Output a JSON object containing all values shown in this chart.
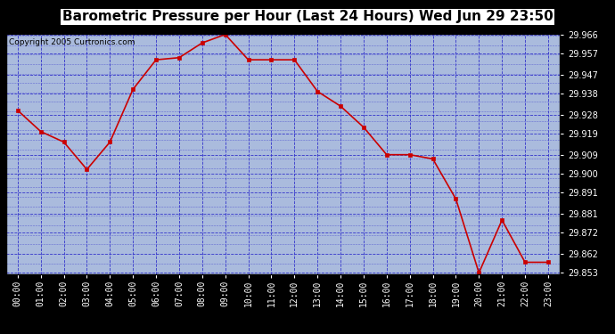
{
  "title": "Barometric Pressure per Hour (Last 24 Hours) Wed Jun 29 23:50",
  "copyright": "Copyright 2005 Curtronics.com",
  "hours": [
    "00:00",
    "01:00",
    "02:00",
    "03:00",
    "04:00",
    "05:00",
    "06:00",
    "07:00",
    "08:00",
    "09:00",
    "10:00",
    "11:00",
    "12:00",
    "13:00",
    "14:00",
    "15:00",
    "16:00",
    "17:00",
    "18:00",
    "19:00",
    "20:00",
    "21:00",
    "22:00",
    "23:00"
  ],
  "values": [
    29.93,
    29.92,
    29.915,
    29.902,
    29.915,
    29.94,
    29.954,
    29.955,
    29.962,
    29.966,
    29.954,
    29.954,
    29.954,
    29.939,
    29.932,
    29.922,
    29.909,
    29.909,
    29.907,
    29.888,
    29.853,
    29.878,
    29.858,
    29.858
  ],
  "ylim_min": 29.853,
  "ylim_max": 29.966,
  "yticks": [
    29.853,
    29.862,
    29.872,
    29.881,
    29.891,
    29.9,
    29.909,
    29.919,
    29.928,
    29.938,
    29.947,
    29.957,
    29.966
  ],
  "line_color": "#cc0000",
  "marker_color": "#cc0000",
  "bg_color": "#aabbdd",
  "plot_bg_color": "#aabbdd",
  "grid_color": "#3333cc",
  "outer_bg": "#000000",
  "title_color": "#000000",
  "title_fontsize": 11,
  "copyright_fontsize": 6.5,
  "tick_fontsize": 7,
  "ytick_fontsize": 7
}
